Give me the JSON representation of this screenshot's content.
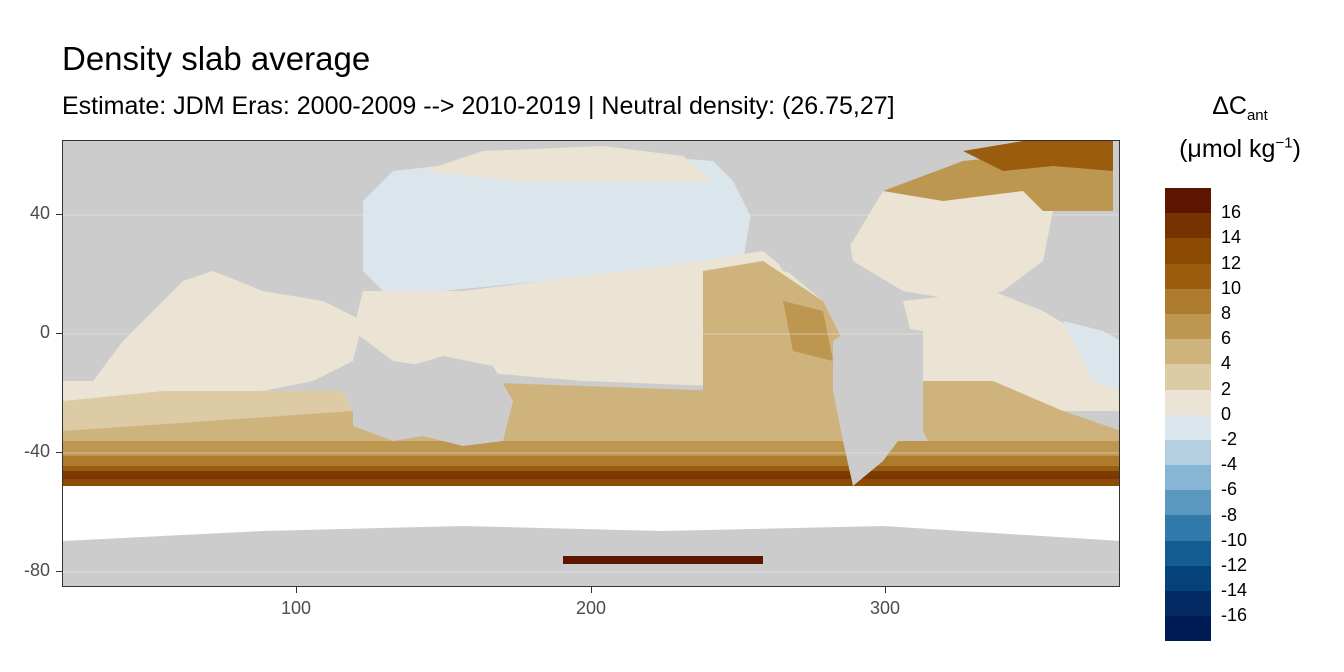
{
  "title": "Density slab average",
  "subtitle": "Estimate: JDM Eras: 2000-2009 --> 2010-2019 | Neutral density: (26.75,27]",
  "legend": {
    "title_main": "ΔC",
    "title_sub": "ant",
    "unit_prefix": "(μmol kg",
    "unit_sup": "−1",
    "unit_suffix": ")",
    "labels": [
      "16",
      "14",
      "12",
      "10",
      "8",
      "6",
      "4",
      "2",
      "0",
      "-2",
      "-4",
      "-6",
      "-8",
      "-10",
      "-12",
      "-14",
      "-16"
    ],
    "colors": [
      "#5c1600",
      "#763200",
      "#8c4a02",
      "#9a5d0d",
      "#ac7b2e",
      "#bd9650",
      "#ceb37d",
      "#ddcba6",
      "#ebe3d3",
      "#dbe6ec",
      "#b3cfe0",
      "#87b6d4",
      "#5a98c0",
      "#327aaa",
      "#125d94",
      "#06427a",
      "#032a63",
      "#001a55"
    ]
  },
  "map": {
    "x_ticks": [
      "100",
      "200",
      "300"
    ],
    "y_ticks": [
      "40",
      "0",
      "-40",
      "-80"
    ],
    "land_color": "#cccccc",
    "missing_color": "#ffffff"
  }
}
